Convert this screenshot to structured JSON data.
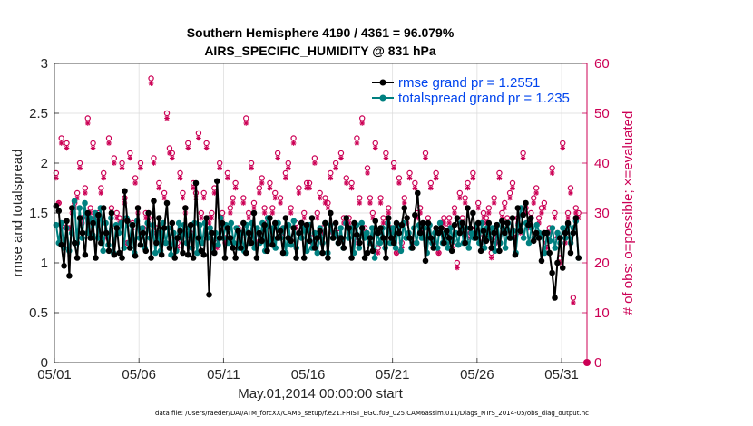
{
  "chart_data": {
    "type": "line",
    "title": "Southern Hemisphere 4190 / 4361 = 96.079%",
    "subtitle": "AIRS_SPECIFIC_HUMIDITY @ 831 hPa",
    "xlabel": "May.01,2014 00:00:00 start",
    "ylabel": "rmse and totalspread",
    "y2label": "# of obs: o=possible; ×=evaluated",
    "xlim": [
      0,
      31.5
    ],
    "ylim": [
      0,
      3
    ],
    "y2lim": [
      0,
      60
    ],
    "xticks": [
      0,
      5,
      10,
      15,
      20,
      25,
      30
    ],
    "xtick_labels": [
      "05/01",
      "05/06",
      "05/11",
      "05/16",
      "05/21",
      "05/26",
      "05/31"
    ],
    "yticks": [
      0,
      0.5,
      1,
      1.5,
      2,
      2.5,
      3
    ],
    "ytick_labels": [
      "0",
      "0.5",
      "1",
      "1.5",
      "2",
      "2.5",
      "3"
    ],
    "y2ticks": [
      0,
      10,
      20,
      30,
      40,
      50,
      60
    ],
    "y2tick_labels": [
      "0",
      "10",
      "20",
      "30",
      "40",
      "50",
      "60"
    ],
    "legend": [
      "rmse grand pr = 1.2551",
      "totalspread grand pr = 1.235"
    ],
    "legend_position": "top-right",
    "footnote": "data file: /Users/raeder/DAI/ATM_forcXX/CAM6_setup/f.e21.FHIST_BGC.f09_025.CAM6assim.011/Diags_NTrS_2014-05/obs_diag_output.nc",
    "colors": {
      "rmse": "#000000",
      "spread": "#008080",
      "obs": "#cc0055"
    },
    "series": [
      {
        "name": "rmse",
        "values": [
          1.57,
          1.52,
          1.18,
          0.97,
          1.42,
          0.87,
          1.55,
          1.2,
          1.05,
          1.45,
          1.3,
          1.08,
          1.5,
          1.25,
          1.4,
          1.05,
          1.48,
          1.2,
          1.55,
          1.3,
          1.12,
          1.5,
          1.08,
          1.35,
          1.1,
          1.05,
          1.72,
          1.42,
          1.15,
          1.38,
          1.07,
          1.55,
          1.18,
          1.3,
          1.12,
          1.5,
          1.05,
          1.62,
          1.2,
          1.45,
          1.08,
          1.35,
          1.6,
          1.15,
          1.4,
          1.05,
          1.25,
          1.32,
          1.1,
          1.55,
          1.08,
          1.38,
          1.05,
          1.8,
          1.25,
          1.12,
          1.08,
          1.45,
          0.68,
          1.3,
          1.1,
          1.82,
          1.25,
          1.4,
          1.05,
          1.35,
          1.25,
          1.15,
          1.05,
          1.32,
          1.15,
          1.4,
          1.1,
          1.3,
          1.2,
          1.5,
          1.05,
          1.3,
          1.22,
          1.38,
          1.12,
          1.45,
          1.18,
          1.4,
          1.25,
          1.32,
          1.1,
          1.45,
          1.25,
          1.22,
          1.35,
          1.05,
          1.3,
          1.4,
          1.05,
          1.38,
          1.22,
          1.45,
          1.15,
          1.25,
          1.32,
          1.1,
          1.4,
          1.05,
          1.5,
          1.25,
          1.4,
          1.2,
          1.25,
          1.15,
          1.45,
          1.35,
          1.05,
          1.4,
          1.28,
          1.2,
          1.35,
          1.05,
          1.1,
          1.25,
          1.12,
          1.42,
          1.3,
          1.35,
          1.25,
          1.05,
          1.45,
          1.25,
          1.2,
          1.4,
          1.3,
          1.38,
          1.55,
          1.45,
          1.25,
          1.15,
          1.48,
          1.7,
          1.3,
          1.4,
          1.02,
          1.4,
          1.25,
          1.15,
          1.35,
          1.3,
          1.35,
          1.2,
          1.32,
          1.25,
          1.12,
          1.38,
          1.45,
          1.3,
          1.4,
          1.2,
          1.55,
          1.35,
          1.5,
          1.25,
          1.4,
          1.12,
          1.32,
          1.22,
          1.4,
          1.15,
          1.3,
          1.38,
          1.12,
          1.42,
          1.3,
          1.4,
          1.25,
          1.45,
          1.08,
          1.55,
          1.32,
          1.48,
          1.6,
          1.38,
          1.45,
          1.22,
          1.3,
          1.25,
          1.02,
          1.3,
          1.3,
          1.1,
          0.9,
          0.65,
          1.0,
          1.25,
          0.95,
          1.3,
          1.4,
          1.1,
          1.3,
          1.45,
          1.05
        ]
      },
      {
        "name": "totalspread",
        "values": [
          1.38,
          1.2,
          1.4,
          1.15,
          1.35,
          1.12,
          1.3,
          1.62,
          1.2,
          1.55,
          1.25,
          1.6,
          1.3,
          1.45,
          1.28,
          1.5,
          1.25,
          1.55,
          1.12,
          1.4,
          1.18,
          1.45,
          1.1,
          1.38,
          1.3,
          1.4,
          1.15,
          1.45,
          1.2,
          1.38,
          1.1,
          1.42,
          1.25,
          1.35,
          1.15,
          1.4,
          1.25,
          1.38,
          1.1,
          1.3,
          1.12,
          1.4,
          1.2,
          1.35,
          1.08,
          1.3,
          1.12,
          1.4,
          1.25,
          1.38,
          1.2,
          1.35,
          1.15,
          1.4,
          1.1,
          1.38,
          1.2,
          1.4,
          1.25,
          1.35,
          1.15,
          1.3,
          1.18,
          1.45,
          1.25,
          1.38,
          1.2,
          1.4,
          1.2,
          1.35,
          1.15,
          1.3,
          1.12,
          1.38,
          1.2,
          1.4,
          1.15,
          1.35,
          1.2,
          1.4,
          1.12,
          1.45,
          1.2,
          1.35,
          1.15,
          1.4,
          1.25,
          1.35,
          1.1,
          1.38,
          1.18,
          1.42,
          1.15,
          1.3,
          1.25,
          1.35,
          1.12,
          1.38,
          1.15,
          1.3,
          1.1,
          1.35,
          1.2,
          1.4,
          1.1,
          1.38,
          1.25,
          1.3,
          1.2,
          1.35,
          1.15,
          1.4,
          1.25,
          1.35,
          1.1,
          1.38,
          1.15,
          1.4,
          1.25,
          1.3,
          1.2,
          1.35,
          1.05,
          1.3,
          1.2,
          1.35,
          1.15,
          1.4,
          1.2,
          1.35,
          1.15,
          1.38,
          1.12,
          1.4,
          1.25,
          1.3,
          1.15,
          1.35,
          1.2,
          1.38,
          1.25,
          1.35,
          1.1,
          1.38,
          1.2,
          1.3,
          1.15,
          1.4,
          1.2,
          1.3,
          1.15,
          1.35,
          1.22,
          1.3,
          1.18,
          1.4,
          1.2,
          1.35,
          1.15,
          1.3,
          1.25,
          1.38,
          1.2,
          1.4,
          1.15,
          1.35,
          1.25,
          1.35,
          1.12,
          1.38,
          1.2,
          1.35,
          1.15,
          1.4,
          1.25,
          1.32,
          1.1,
          1.38,
          1.55,
          1.25,
          1.4,
          1.2,
          1.35,
          1.25,
          1.38,
          1.3,
          1.28,
          1.1,
          1.3,
          1.22,
          1.35,
          1.15,
          1.3,
          1.2,
          1.35,
          1.25,
          1.38,
          1.2,
          1.35,
          1.42,
          1.05
        ]
      },
      {
        "name": "# obs possible (o)",
        "values": [
          38,
          32,
          45,
          28,
          44,
          27,
          31,
          32,
          34,
          40,
          29,
          35,
          49,
          31,
          44,
          29,
          30,
          35,
          38,
          26,
          45,
          31,
          41,
          30,
          29,
          40,
          33,
          24,
          42,
          28,
          37,
          31,
          40,
          27,
          30,
          29,
          57,
          41,
          27,
          36,
          25,
          34,
          50,
          43,
          42,
          25,
          24,
          38,
          34,
          31,
          44,
          26,
          36,
          34,
          46,
          30,
          34,
          44,
          29,
          30,
          35,
          24,
          40,
          30,
          25,
          38,
          31,
          33,
          36,
          27,
          26,
          33,
          49,
          30,
          40,
          32,
          25,
          35,
          37,
          31,
          28,
          36,
          31,
          34,
          42,
          33,
          27,
          38,
          40,
          31,
          45,
          28,
          35,
          28,
          30,
          36,
          36,
          25,
          41,
          30,
          34,
          27,
          33,
          32,
          38,
          26,
          40,
          26,
          42,
          29,
          37,
          29,
          36,
          25,
          45,
          33,
          49,
          27,
          39,
          33,
          30,
          44,
          23,
          33,
          29,
          42,
          31,
          27,
          40,
          22,
          37,
          24,
          33,
          29,
          38,
          24,
          36,
          30,
          31,
          26,
          42,
          29,
          36,
          24,
          38,
          22,
          28,
          29,
          27,
          29,
          24,
          31,
          20,
          34,
          29,
          33,
          36,
          26,
          38,
          27,
          32,
          25,
          30,
          29,
          31,
          22,
          33,
          25,
          38,
          30,
          32,
          29,
          34,
          36,
          26,
          29,
          27,
          42,
          31,
          28,
          30,
          33,
          35,
          29,
          31,
          32,
          24,
          27,
          39,
          30,
          26,
          21,
          44,
          25,
          30,
          35,
          13,
          31,
          30
        ],
        "marker": "o"
      },
      {
        "name": "# obs evaluated (×)",
        "values": [
          37,
          32,
          44,
          27,
          43,
          27,
          30,
          31,
          33,
          39,
          28,
          34,
          48,
          30,
          43,
          28,
          29,
          34,
          37,
          25,
          44,
          30,
          40,
          29,
          28,
          39,
          32,
          24,
          41,
          27,
          36,
          30,
          39,
          26,
          29,
          28,
          56,
          40,
          26,
          35,
          24,
          33,
          49,
          42,
          41,
          24,
          23,
          37,
          33,
          30,
          43,
          25,
          35,
          33,
          45,
          29,
          33,
          43,
          28,
          29,
          34,
          23,
          39,
          29,
          24,
          37,
          30,
          32,
          35,
          26,
          25,
          32,
          48,
          29,
          39,
          31,
          24,
          34,
          36,
          30,
          27,
          35,
          30,
          33,
          41,
          32,
          26,
          37,
          39,
          30,
          44,
          27,
          34,
          27,
          29,
          35,
          35,
          24,
          40,
          29,
          33,
          26,
          32,
          31,
          37,
          25,
          39,
          25,
          41,
          28,
          36,
          28,
          35,
          24,
          44,
          32,
          48,
          26,
          38,
          32,
          29,
          43,
          22,
          32,
          28,
          41,
          30,
          26,
          39,
          22,
          36,
          23,
          32,
          28,
          37,
          24,
          35,
          29,
          30,
          25,
          41,
          28,
          35,
          23,
          37,
          22,
          27,
          28,
          26,
          28,
          23,
          30,
          19,
          33,
          28,
          32,
          35,
          25,
          37,
          26,
          31,
          24,
          29,
          28,
          30,
          21,
          32,
          24,
          37,
          29,
          31,
          28,
          33,
          35,
          25,
          28,
          26,
          41,
          30,
          27,
          29,
          32,
          34,
          28,
          30,
          31,
          23,
          26,
          38,
          29,
          25,
          20,
          43,
          24,
          29,
          34,
          12,
          30,
          29
        ],
        "marker": "x"
      }
    ]
  }
}
